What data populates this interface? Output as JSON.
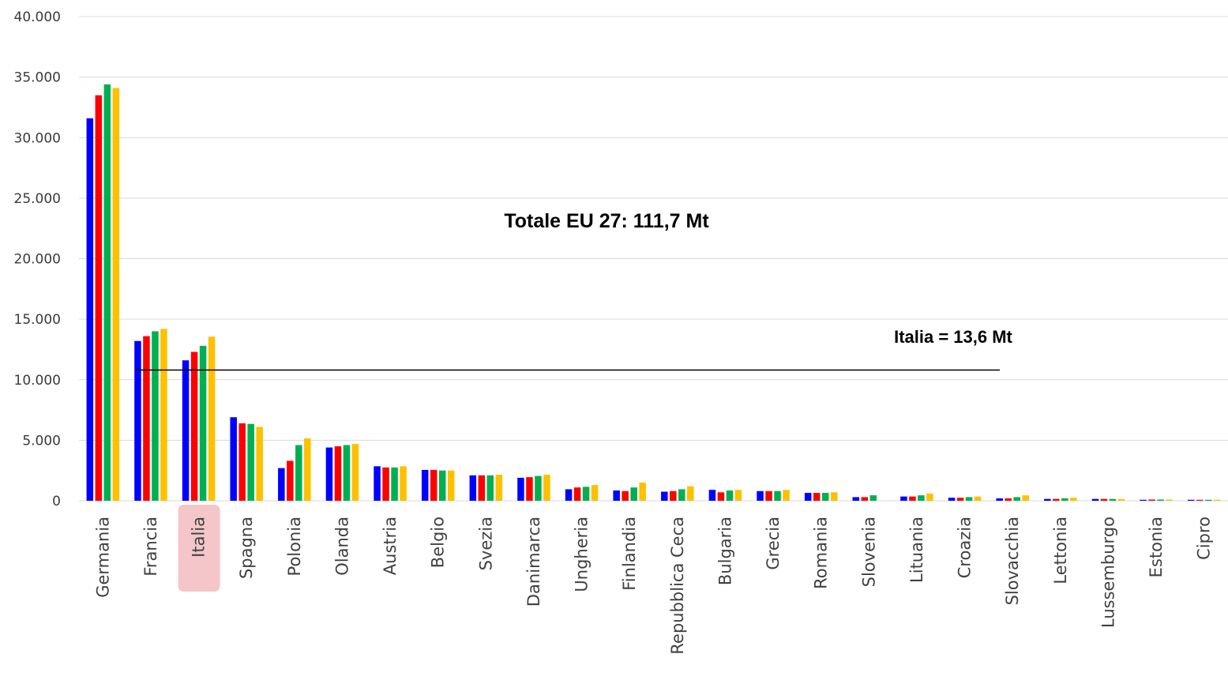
{
  "chart_data": {
    "type": "bar",
    "categories": [
      "Germania",
      "Francia",
      "Italia",
      "Spagna",
      "Polonia",
      "Olanda",
      "Austria",
      "Belgio",
      "Svezia",
      "Danimarca",
      "Ungheria",
      "Finlandia",
      "Repubblica Ceca",
      "Bulgaria",
      "Grecia",
      "Romania",
      "Slovenia",
      "Lituania",
      "Croazia",
      "Slovacchia",
      "Lettonia",
      "Lussemburgo",
      "Estonia",
      "Cipro"
    ],
    "series": [
      {
        "color": "#0000ff",
        "values": [
          31600,
          13200,
          11600,
          6900,
          2700,
          4400,
          2850,
          2550,
          2100,
          1900,
          950,
          850,
          750,
          900,
          800,
          650,
          300,
          350,
          250,
          200,
          150,
          150,
          80,
          80
        ]
      },
      {
        "color": "#ff0000",
        "values": [
          33500,
          13600,
          12300,
          6400,
          3300,
          4500,
          2750,
          2550,
          2100,
          1950,
          1100,
          800,
          800,
          700,
          800,
          650,
          300,
          350,
          250,
          200,
          150,
          150,
          100,
          80
        ]
      },
      {
        "color": "#00b050",
        "values": [
          34400,
          14000,
          12800,
          6350,
          4600,
          4600,
          2750,
          2500,
          2100,
          2050,
          1150,
          1100,
          950,
          850,
          800,
          650,
          450,
          450,
          300,
          300,
          200,
          150,
          100,
          80
        ]
      },
      {
        "color": "#ffc000",
        "values": [
          34100,
          14200,
          13550,
          6100,
          5150,
          4700,
          2850,
          2500,
          2150,
          2150,
          1300,
          1500,
          1200,
          900,
          900,
          700,
          0,
          600,
          350,
          450,
          250,
          150,
          100,
          80
        ]
      }
    ],
    "ylim": [
      0,
      40000
    ],
    "yticks": [
      "0",
      "5.000",
      "10.000",
      "15.000",
      "20.000",
      "25.000",
      "30.000",
      "35.000",
      "40.000"
    ],
    "grid": true,
    "highlighted_category": "Italia",
    "reference_line_value": 10800,
    "annotations": [
      "Totale EU 27:  111,7 Mt",
      "Italia = 13,6 Mt"
    ]
  }
}
